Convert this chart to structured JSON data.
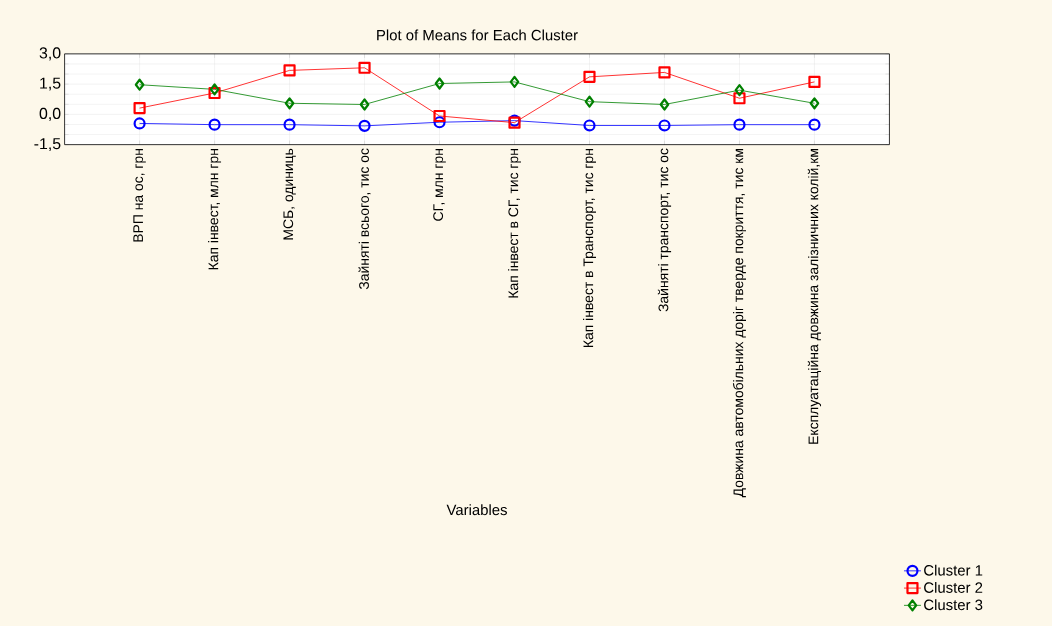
{
  "chart_data": {
    "type": "line",
    "title": "Plot of Means for Each Cluster",
    "xlabel": "Variables",
    "categories": [
      "ВРП на ос, грн",
      "Кап інвест, млн грн",
      "МСБ, одиниць",
      "Зайняті всього, тис ос",
      "СГ, млн грн",
      "Кап інвест в СГ, тис грн",
      "Кап інвест в Транспорт, тис грн",
      "Зайняті транспорт, тис ос",
      "Довжина автомобільних доріг тверде покриття, тис км",
      "Експлуатаційна довжина залізничних колій,км"
    ],
    "series": [
      {
        "name": "Cluster  1",
        "color": "#0000ff",
        "marker": "circle",
        "values": [
          -0.45,
          -0.51,
          -0.51,
          -0.57,
          -0.39,
          -0.31,
          -0.55,
          -0.55,
          -0.51,
          -0.51
        ]
      },
      {
        "name": "Cluster  2",
        "color": "#ff0000",
        "marker": "square",
        "values": [
          0.31,
          1.06,
          2.18,
          2.31,
          -0.08,
          -0.41,
          1.86,
          2.08,
          0.8,
          1.61
        ]
      },
      {
        "name": "Cluster  3",
        "color": "#008000",
        "marker": "diamond",
        "values": [
          1.47,
          1.24,
          0.55,
          0.49,
          1.53,
          1.61,
          0.63,
          0.49,
          1.2,
          0.55
        ]
      }
    ],
    "ylim": [
      -1.5,
      3.0
    ],
    "yticks": [
      {
        "value": -1.5,
        "label": "-1,5"
      },
      {
        "value": -1.0,
        "label": null
      },
      {
        "value": -0.5,
        "label": null
      },
      {
        "value": 0.0,
        "label": "0,0"
      },
      {
        "value": 0.5,
        "label": null
      },
      {
        "value": 1.0,
        "label": null
      },
      {
        "value": 1.5,
        "label": "1,5"
      },
      {
        "value": 2.0,
        "label": null
      },
      {
        "value": 2.5,
        "label": null
      },
      {
        "value": 3.0,
        "label": "3,0"
      }
    ],
    "grid": true,
    "legend": "bottom right",
    "line_style": "solid"
  }
}
